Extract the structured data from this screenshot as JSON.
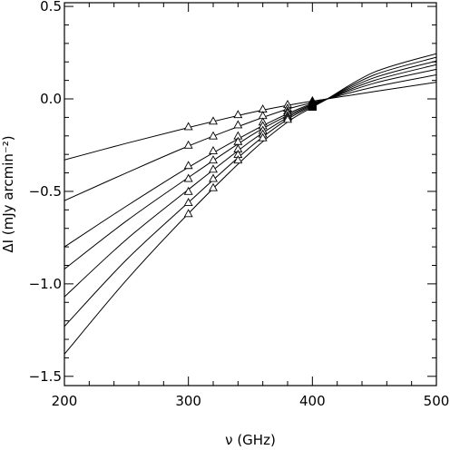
{
  "chart_data": {
    "type": "line",
    "title": "",
    "xlabel": "ν (GHz)",
    "ylabel": "ΔI (mJy arcmin⁻²)",
    "xlim": [
      200,
      500
    ],
    "ylim": [
      -1.55,
      0.52
    ],
    "x_ticks": [
      200,
      300,
      400,
      500
    ],
    "x_tick_labels": [
      "200",
      "300",
      "400",
      "500"
    ],
    "y_ticks": [
      -1.5,
      -1.0,
      -0.5,
      0.0,
      0.5
    ],
    "y_tick_labels": [
      "−1.5",
      "−1.0",
      "−0.5",
      "0.0",
      "0.5"
    ],
    "grid": false,
    "line_color": "#000000",
    "marker": "triangle",
    "series": [
      {
        "x": [
          200,
          250,
          300,
          350,
          380,
          400,
          412,
          450,
          500
        ],
        "y": [
          -0.33,
          -0.24,
          -0.155,
          -0.075,
          -0.035,
          -0.012,
          0.0,
          0.04,
          0.09
        ],
        "markers": [
          {
            "x": 300,
            "y": -0.15
          },
          {
            "x": 320,
            "y": -0.12
          },
          {
            "x": 340,
            "y": -0.085
          },
          {
            "x": 360,
            "y": -0.055
          },
          {
            "x": 380,
            "y": -0.03
          },
          {
            "x": 400,
            "y": -0.01
          }
        ]
      },
      {
        "x": [
          200,
          250,
          300,
          350,
          380,
          400,
          412,
          450,
          500
        ],
        "y": [
          -0.55,
          -0.4,
          -0.255,
          -0.125,
          -0.055,
          -0.02,
          0.0,
          0.065,
          0.13
        ],
        "markers": [
          {
            "x": 300,
            "y": -0.25
          },
          {
            "x": 320,
            "y": -0.2
          },
          {
            "x": 340,
            "y": -0.14
          },
          {
            "x": 360,
            "y": -0.09
          },
          {
            "x": 380,
            "y": -0.05
          },
          {
            "x": 400,
            "y": -0.02
          }
        ]
      },
      {
        "x": [
          200,
          250,
          300,
          350,
          380,
          400,
          412,
          450,
          500
        ],
        "y": [
          -0.8,
          -0.58,
          -0.37,
          -0.18,
          -0.08,
          -0.025,
          0.0,
          0.085,
          0.16
        ],
        "markers": [
          {
            "x": 300,
            "y": -0.36
          },
          {
            "x": 320,
            "y": -0.28
          },
          {
            "x": 340,
            "y": -0.2
          },
          {
            "x": 360,
            "y": -0.125
          },
          {
            "x": 380,
            "y": -0.065
          },
          {
            "x": 400,
            "y": -0.025
          }
        ]
      },
      {
        "x": [
          200,
          250,
          300,
          350,
          380,
          400,
          412,
          450,
          500
        ],
        "y": [
          -0.92,
          -0.66,
          -0.425,
          -0.2,
          -0.09,
          -0.03,
          0.0,
          0.1,
          0.185
        ],
        "markers": [
          {
            "x": 300,
            "y": -0.43
          },
          {
            "x": 320,
            "y": -0.33
          },
          {
            "x": 340,
            "y": -0.23
          },
          {
            "x": 360,
            "y": -0.145
          },
          {
            "x": 380,
            "y": -0.075
          },
          {
            "x": 400,
            "y": -0.03
          }
        ]
      },
      {
        "x": [
          200,
          250,
          300,
          350,
          380,
          400,
          412,
          450,
          500
        ],
        "y": [
          -1.07,
          -0.76,
          -0.49,
          -0.23,
          -0.1,
          -0.035,
          0.0,
          0.115,
          0.205
        ],
        "markers": [
          {
            "x": 300,
            "y": -0.5
          },
          {
            "x": 320,
            "y": -0.38
          },
          {
            "x": 340,
            "y": -0.27
          },
          {
            "x": 360,
            "y": -0.17
          },
          {
            "x": 380,
            "y": -0.09
          },
          {
            "x": 400,
            "y": -0.035
          }
        ]
      },
      {
        "x": [
          200,
          250,
          300,
          350,
          380,
          400,
          412,
          450,
          500
        ],
        "y": [
          -1.23,
          -0.87,
          -0.56,
          -0.26,
          -0.11,
          -0.04,
          0.0,
          0.13,
          0.225
        ],
        "markers": [
          {
            "x": 300,
            "y": -0.56
          },
          {
            "x": 320,
            "y": -0.43
          },
          {
            "x": 340,
            "y": -0.3
          },
          {
            "x": 360,
            "y": -0.19
          },
          {
            "x": 380,
            "y": -0.1
          },
          {
            "x": 400,
            "y": -0.04
          }
        ]
      },
      {
        "x": [
          200,
          250,
          300,
          350,
          380,
          400,
          412,
          450,
          500
        ],
        "y": [
          -1.38,
          -0.98,
          -0.62,
          -0.29,
          -0.125,
          -0.045,
          0.0,
          0.145,
          0.245
        ],
        "markers": [
          {
            "x": 300,
            "y": -0.62
          },
          {
            "x": 320,
            "y": -0.48
          },
          {
            "x": 340,
            "y": -0.33
          },
          {
            "x": 360,
            "y": -0.21
          },
          {
            "x": 380,
            "y": -0.11
          },
          {
            "x": 400,
            "y": -0.045
          }
        ]
      }
    ]
  }
}
